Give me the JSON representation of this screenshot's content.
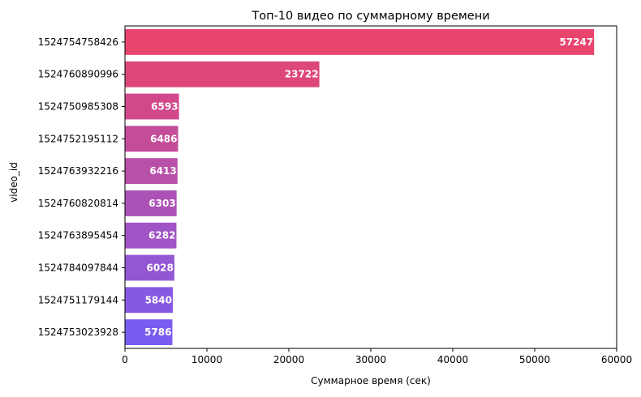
{
  "chart_data": {
    "type": "bar",
    "orientation": "horizontal",
    "title": "Топ-10 видео по суммарному времени",
    "xlabel": "Суммарное время (сек)",
    "ylabel": "video_id",
    "xlim": [
      0,
      60000
    ],
    "x_ticks": [
      "0",
      "10000",
      "20000",
      "30000",
      "40000",
      "50000",
      "60000"
    ],
    "categories": [
      "1524754758426",
      "1524760890996",
      "1524750985308",
      "1524752195112",
      "1524763932216",
      "1524760820814",
      "1524763895454",
      "1524784097844",
      "1524751179144",
      "1524753023928"
    ],
    "values": [
      57247,
      23722,
      6593,
      6486,
      6413,
      6303,
      6282,
      6028,
      5840,
      5786
    ],
    "data_labels": [
      "57247",
      "23722",
      "6593",
      "6486",
      "6413",
      "6303",
      "6282",
      "6028",
      "5840",
      "5786"
    ],
    "grid": false,
    "legend": "none",
    "colors": {
      "gradient_start": "#e9446e",
      "gradient_end": "#7b5cf0",
      "bar_label": "#ffffff",
      "axis": "#000000"
    }
  }
}
